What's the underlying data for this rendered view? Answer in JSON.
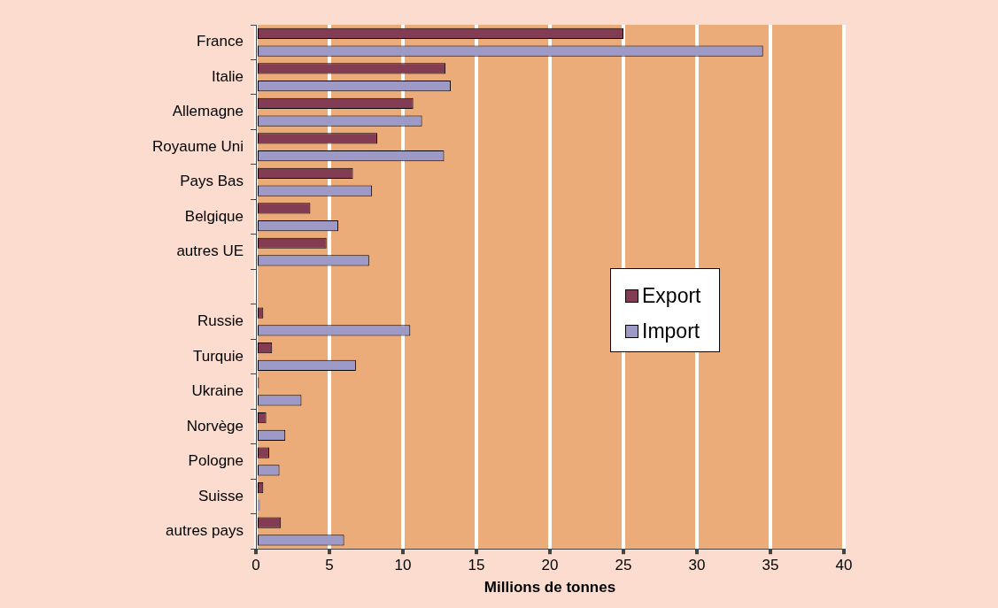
{
  "chart_data": {
    "type": "bar",
    "orientation": "horizontal",
    "xlabel": "Millions de tonnes",
    "categories": [
      "France",
      "Italie",
      "Allemagne",
      "Royaume Uni",
      "Pays Bas",
      "Belgique",
      "autres UE",
      null,
      "Russie",
      "Turquie",
      "Ukraine",
      "Norvège",
      "Pologne",
      "Suisse",
      "autres pays"
    ],
    "series": [
      {
        "name": "Export",
        "color": "#843c54",
        "values": [
          25,
          12.9,
          10.7,
          8.25,
          6.6,
          3.7,
          4.8,
          null,
          0.5,
          1.1,
          0.2,
          0.7,
          0.9,
          0.5,
          1.7
        ]
      },
      {
        "name": "Import",
        "color": "#9e9ac8",
        "values": [
          34.5,
          13.25,
          11.3,
          12.8,
          7.9,
          5.6,
          7.7,
          null,
          10.5,
          6.8,
          3.1,
          2.0,
          1.6,
          0.3,
          6.0
        ]
      }
    ],
    "xlim": [
      0,
      40
    ],
    "xticks": [
      0,
      5,
      10,
      15,
      20,
      25,
      30,
      35,
      40
    ],
    "grid": "x",
    "legend": "right"
  }
}
